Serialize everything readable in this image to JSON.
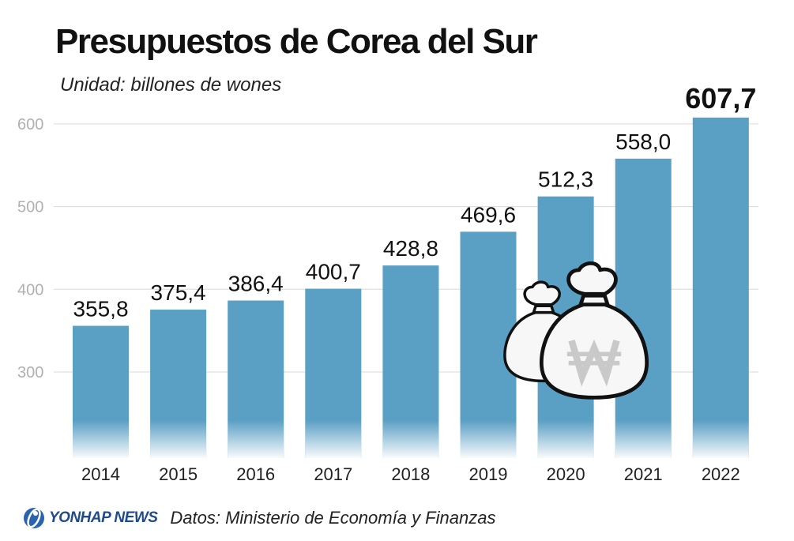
{
  "header": {
    "title": "Presupuestos de Corea del Sur",
    "unit": "Unidad: billones de wones"
  },
  "footer": {
    "logo": "YONHAP NEWS",
    "source": "Datos: Ministerio de Economía y Finanzas"
  },
  "colors": {
    "bar": "#5a9fc4",
    "grid": "#d9d9d9",
    "tick": "#b0b0b0",
    "text": "#111111",
    "logo": "#1f4a8c"
  },
  "icons": [
    "money-bags-icon",
    "won-sign-icon",
    "yonhap-logo-icon"
  ],
  "chart_data": {
    "type": "bar",
    "categories": [
      "2014",
      "2015",
      "2016",
      "2017",
      "2018",
      "2019",
      "2020",
      "2021",
      "2022"
    ],
    "values": [
      355.8,
      375.4,
      386.4,
      400.7,
      428.8,
      469.6,
      512.3,
      558.0,
      607.7
    ],
    "data_labels": [
      "355,8",
      "375,4",
      "386,4",
      "400,7",
      "428,8",
      "469,6",
      "512,3",
      "558,0",
      "607,7"
    ],
    "highlight_last": true,
    "yticks": [
      "300",
      "400",
      "500",
      "600"
    ],
    "ylim": [
      200,
      620
    ],
    "grid": true,
    "legend": "none",
    "xlabel": "",
    "ylabel": ""
  }
}
